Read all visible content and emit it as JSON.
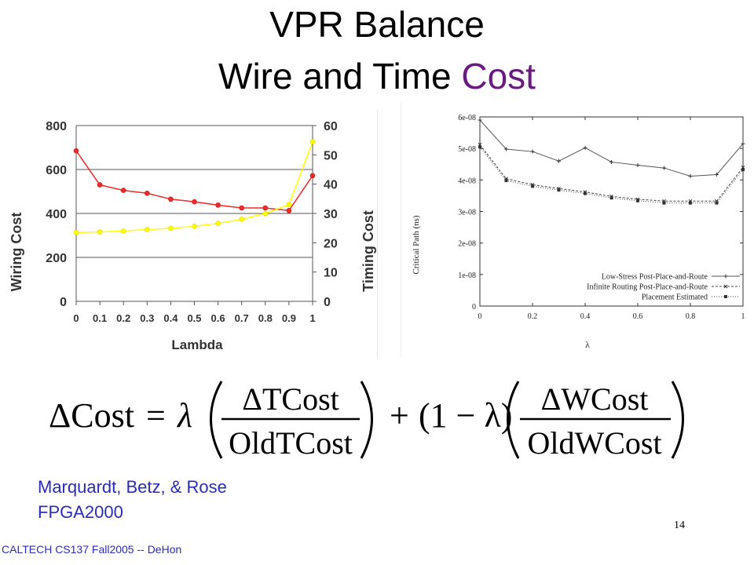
{
  "title": {
    "line1": "VPR Balance",
    "line2_main": "Wire and Time ",
    "line2_accent": "Cost"
  },
  "citation": {
    "line1": "Marquardt, Betz, & Rose",
    "line2": "FPGA2000"
  },
  "footer": "CALTECH CS137 Fall2005 -- DeHon",
  "page_number": "14",
  "formula": {
    "lhs": "ΔCost",
    "equals": "=",
    "lambda": "λ",
    "frac1_num": "ΔTCost",
    "frac1_den": "OldTCost",
    "plus": "+",
    "one_minus": "(1 − λ)",
    "frac2_num": "ΔWCost",
    "frac2_den": "OldWCost"
  },
  "colors": {
    "wiring": "#ee2a2a",
    "timing": "#ffff00",
    "title_accent": "#6a1b7f",
    "citation": "#2b2bb8"
  },
  "chart_data": [
    {
      "type": "line",
      "xlabel": "Lambda",
      "ylabel_left": "Wiring Cost",
      "ylabel_right": "Timing Cost",
      "x": [
        0,
        0.1,
        0.2,
        0.3,
        0.4,
        0.5,
        0.6,
        0.7,
        0.8,
        0.9,
        1
      ],
      "x_tick_labels": [
        "0",
        "0.1",
        "0.2",
        "0.3",
        "0.4",
        "0.5",
        "0.6",
        "0.7",
        "0.8",
        "0.9",
        "1"
      ],
      "ylim_left": [
        0,
        800
      ],
      "yticks_left": [
        "0",
        "200",
        "400",
        "600",
        "800"
      ],
      "ylim_right": [
        0,
        60
      ],
      "yticks_right": [
        "0",
        "10",
        "20",
        "30",
        "40",
        "50",
        "60"
      ],
      "grid": true,
      "series": [
        {
          "axis": "left",
          "color": "#ee2a2a",
          "values": [
            685,
            530,
            505,
            492,
            465,
            453,
            438,
            425,
            425,
            413,
            572
          ]
        },
        {
          "axis": "right",
          "color": "#ffff00",
          "values": [
            23.5,
            23.7,
            24.0,
            24.5,
            24.9,
            25.6,
            26.6,
            28.0,
            30.0,
            33.0,
            54.5
          ]
        }
      ]
    },
    {
      "type": "line",
      "xlabel": "λ",
      "ylabel": "Critical Path (ns)",
      "x": [
        0,
        0.1,
        0.2,
        0.3,
        0.4,
        0.5,
        0.6,
        0.7,
        0.8,
        0.9,
        1
      ],
      "x_tick_labels": [
        "0",
        "0.2",
        "0.4",
        "0.6",
        "0.8",
        "1"
      ],
      "x_ticks": [
        0,
        0.2,
        0.4,
        0.6,
        0.8,
        1
      ],
      "ylim": [
        0,
        6e-08
      ],
      "y_tick_labels": [
        "0",
        "1e-08",
        "2e-08",
        "3e-08",
        "4e-08",
        "5e-08",
        "6e-08"
      ],
      "y_ticks": [
        0,
        1e-08,
        2e-08,
        3e-08,
        4e-08,
        5e-08,
        6e-08
      ],
      "legend_position": "bottom-right",
      "series": [
        {
          "name": "Low-Stress Post-Place-and-Route",
          "marker": "+",
          "dash": "",
          "values": [
            5.9e-08,
            4.98e-08,
            4.9e-08,
            4.6e-08,
            5.02e-08,
            4.57e-08,
            4.47e-08,
            4.38e-08,
            4.12e-08,
            4.17e-08,
            5.15e-08
          ]
        },
        {
          "name": "Infinite Routing Post-Place-and-Route",
          "marker": "x",
          "dash": "3,2",
          "values": [
            5.12e-08,
            4.04e-08,
            3.85e-08,
            3.73e-08,
            3.62e-08,
            3.48e-08,
            3.39e-08,
            3.33e-08,
            3.33e-08,
            3.33e-08,
            4.4e-08
          ]
        },
        {
          "name": "Placement Estimated",
          "marker": "square",
          "dash": "1,2",
          "values": [
            5.05e-08,
            3.98e-08,
            3.8e-08,
            3.68e-08,
            3.57e-08,
            3.43e-08,
            3.34e-08,
            3.27e-08,
            3.27e-08,
            3.27e-08,
            4.33e-08
          ]
        }
      ]
    }
  ]
}
